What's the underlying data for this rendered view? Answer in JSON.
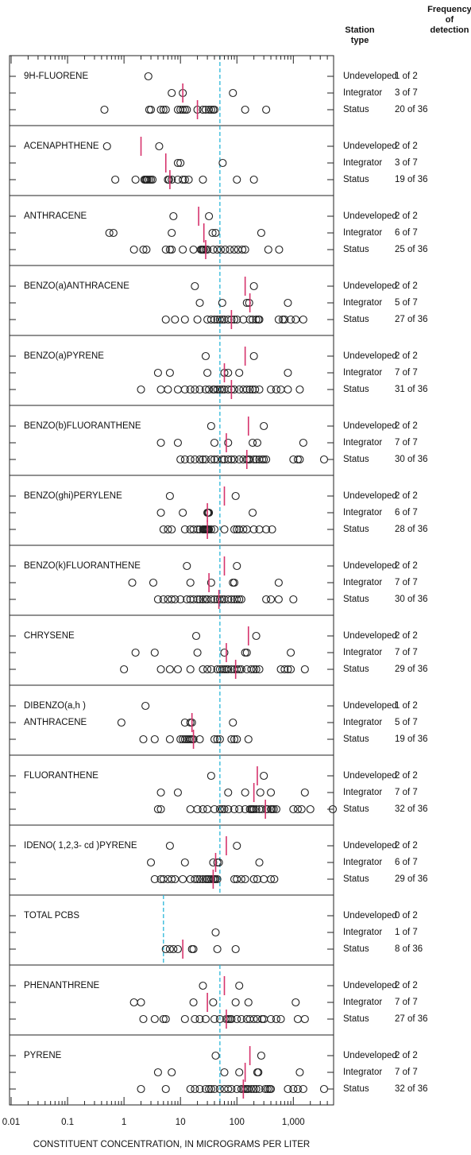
{
  "chart_data": {
    "type": "strip",
    "xlabel": "CONSTITUENT CONCENTRATION, IN MICROGRAMS PER LITER",
    "station_header": [
      "Station",
      "type"
    ],
    "frequency_header": [
      "Frequency",
      "of",
      "detection"
    ],
    "xscale": "log",
    "xlim": [
      0.01,
      5000
    ],
    "xticks": [
      0.01,
      0.1,
      1,
      10,
      100,
      {
        "value": 1000,
        "label": "1,000"
      }
    ],
    "xminorticks": [
      0.02,
      0.03,
      0.04,
      0.05,
      0.06,
      0.07,
      0.08,
      0.09,
      0.2,
      0.3,
      0.4,
      0.5,
      0.6,
      0.7,
      0.8,
      0.9,
      2,
      3,
      4,
      5,
      6,
      7,
      8,
      9,
      20,
      30,
      40,
      50,
      60,
      70,
      80,
      90,
      200,
      300,
      400,
      500,
      600,
      700,
      800,
      900,
      2000,
      3000,
      4000
    ],
    "circle_color": "#222222",
    "median_color": "#d6336c",
    "reference_color": "#29b6d9",
    "panels": [
      {
        "label": [
          "9H-FLUORENE"
        ],
        "reference": 50,
        "rows": [
          {
            "station": "Undeveloped",
            "frequency": "1 of 2",
            "values": [
              2.7
            ],
            "median": null
          },
          {
            "station": "Integrator",
            "frequency": "3 of 7",
            "values": [
              7,
              11,
              85
            ],
            "median": 11
          },
          {
            "station": "Status",
            "frequency": "20 of 36",
            "values": [
              0.45,
              2.8,
              3,
              4.5,
              5,
              5.5,
              9,
              10,
              11,
              12,
              13,
              20,
              25,
              28,
              32,
              35,
              38,
              40,
              140,
              330
            ],
            "median": 20
          }
        ]
      },
      {
        "label": [
          "ACENAPHTHENE"
        ],
        "reference": 50,
        "rows": [
          {
            "station": "Undeveloped",
            "frequency": "2 of 2",
            "values": [
              0.5,
              4.2
            ],
            "median": 2
          },
          {
            "station": "Integrator",
            "frequency": "3 of 7",
            "values": [
              9,
              10,
              56
            ],
            "median": 5.5
          },
          {
            "station": "Status",
            "frequency": "19 of 36",
            "values": [
              0.7,
              1.6,
              2.3,
              2.4,
              2.5,
              2.6,
              2.8,
              6,
              6.3,
              7,
              9,
              11,
              12,
              14,
              25,
              100,
              200,
              3,
              3.2
            ],
            "median": 6.5
          }
        ]
      },
      {
        "label": [
          "ANTHRACENE"
        ],
        "reference": 50,
        "rows": [
          {
            "station": "Undeveloped",
            "frequency": "2 of 2",
            "values": [
              7.5,
              32
            ],
            "median": 21
          },
          {
            "station": "Integrator",
            "frequency": "6 of 7",
            "values": [
              0.55,
              0.65,
              7,
              37,
              42,
              270
            ],
            "median": 26
          },
          {
            "station": "Status",
            "frequency": "25 of 36",
            "values": [
              1.5,
              2.2,
              2.5,
              5.5,
              6.5,
              7,
              11,
              17,
              23,
              24,
              25,
              26,
              28,
              30,
              38,
              45,
              52,
              62,
              75,
              90,
              105,
              125,
              140,
              360,
              560
            ],
            "median": 28
          }
        ]
      },
      {
        "label": [
          "BENZO(a)ANTHRACENE"
        ],
        "reference": 50,
        "rows": [
          {
            "station": "Undeveloped",
            "frequency": "2 of 2",
            "values": [
              18,
              200
            ],
            "median": 140
          },
          {
            "station": "Integrator",
            "frequency": "5 of 7",
            "values": [
              22,
              55,
              150,
              165,
              800
            ],
            "median": 170
          },
          {
            "station": "Status",
            "frequency": "27 of 36",
            "values": [
              5.5,
              8,
              12,
              20,
              30,
              35,
              40,
              45,
              50,
              55,
              60,
              70,
              80,
              90,
              100,
              130,
              170,
              190,
              220,
              240,
              550,
              650,
              700,
              900,
              1100,
              1500,
              250
            ],
            "median": 80
          }
        ]
      },
      {
        "label": [
          "BENZO(a)PYRENE"
        ],
        "reference": 50,
        "rows": [
          {
            "station": "Undeveloped",
            "frequency": "2 of 2",
            "values": [
              28,
              200
            ],
            "median": 140
          },
          {
            "station": "Integrator",
            "frequency": "7 of 7",
            "values": [
              4,
              6.5,
              30,
              60,
              70,
              110,
              800
            ],
            "median": 60
          },
          {
            "station": "Status",
            "frequency": "31 of 36",
            "values": [
              2,
              4.5,
              6,
              9,
              12,
              15,
              18,
              22,
              28,
              32,
              38,
              45,
              50,
              55,
              60,
              70,
              80,
              90,
              110,
              130,
              150,
              170,
              190,
              210,
              250,
              400,
              500,
              600,
              800,
              1300,
              40
            ],
            "median": 80
          }
        ]
      },
      {
        "label": [
          "BENZO(b)FLUORANTHENE"
        ],
        "reference": 50,
        "rows": [
          {
            "station": "Undeveloped",
            "frequency": "2 of 2",
            "values": [
              35,
              300
            ],
            "median": 160
          },
          {
            "station": "Integrator",
            "frequency": "7 of 7",
            "values": [
              4.5,
              9,
              40,
              70,
              190,
              230,
              1500
            ],
            "median": 65
          },
          {
            "station": "Status",
            "frequency": "30 of 36",
            "values": [
              10,
              12,
              15,
              18,
              22,
              28,
              35,
              45,
              55,
              60,
              70,
              90,
              110,
              130,
              150,
              170,
              200,
              220,
              250,
              280,
              300,
              330,
              1000,
              1200,
              1300,
              3500,
              160,
              80,
              40,
              25
            ],
            "median": 150
          }
        ]
      },
      {
        "label": [
          "BENZO(ghi)PERYLENE"
        ],
        "reference": 50,
        "rows": [
          {
            "station": "Undeveloped",
            "frequency": "2 of 2",
            "values": [
              6.5,
              95
            ],
            "median": 60
          },
          {
            "station": "Integrator",
            "frequency": "6 of 7",
            "values": [
              4.5,
              11,
              30,
              31,
              32,
              190
            ],
            "median": 30
          },
          {
            "station": "Status",
            "frequency": "28 of 36",
            "values": [
              5,
              6,
              7,
              12,
              15,
              17,
              20,
              22,
              25,
              28,
              30,
              32,
              35,
              40,
              60,
              90,
              100,
              110,
              130,
              150,
              200,
              250,
              330,
              420,
              26,
              27,
              29,
              31
            ],
            "median": 30
          }
        ]
      },
      {
        "label": [
          "BENZO(k)FLUORANTHENE"
        ],
        "reference": 50,
        "rows": [
          {
            "station": "Undeveloped",
            "frequency": "2 of 2",
            "values": [
              13,
              100
            ],
            "median": 60
          },
          {
            "station": "Integrator",
            "frequency": "7 of 7",
            "values": [
              1.4,
              3.3,
              15,
              35,
              85,
              90,
              550
            ],
            "median": 32
          },
          {
            "station": "Status",
            "frequency": "30 of 36",
            "values": [
              4,
              5,
              6,
              7,
              8,
              10,
              13,
              15,
              17,
              20,
              22,
              25,
              28,
              30,
              35,
              40,
              45,
              55,
              60,
              70,
              80,
              90,
              100,
              110,
              120,
              330,
              400,
              550,
              1000,
              50
            ],
            "median": 48
          }
        ]
      },
      {
        "label": [
          "CHRYSENE"
        ],
        "reference": 50,
        "rows": [
          {
            "station": "Undeveloped",
            "frequency": "2 of 2",
            "values": [
              19,
              220
            ],
            "median": 160
          },
          {
            "station": "Integrator",
            "frequency": "7 of 7",
            "values": [
              1.6,
              3.5,
              20,
              60,
              140,
              150,
              900
            ],
            "median": 65
          },
          {
            "station": "Status",
            "frequency": "29 of 36",
            "values": [
              1,
              4.5,
              6.5,
              9,
              15,
              25,
              35,
              45,
              50,
              55,
              60,
              70,
              80,
              90,
              100,
              120,
              150,
              180,
              200,
              220,
              250,
              600,
              700,
              800,
              900,
              1600,
              30,
              65,
              110
            ],
            "median": 95
          }
        ]
      },
      {
        "label": [
          "DIBENZO(a,h )",
          "ANTHRACENE"
        ],
        "reference": 50,
        "rows": [
          {
            "station": "Undeveloped",
            "frequency": "1 of 2",
            "values": [
              2.4
            ],
            "median": null
          },
          {
            "station": "Integrator",
            "frequency": "5 of 7",
            "values": [
              0.9,
              12,
              15,
              16,
              85
            ],
            "median": 16
          },
          {
            "station": "Status",
            "frequency": "19 of 36",
            "values": [
              2.2,
              3.5,
              6.5,
              10,
              11,
              12,
              13,
              14,
              15,
              16,
              17,
              22,
              40,
              45,
              50,
              80,
              90,
              100,
              160
            ],
            "median": 17
          }
        ]
      },
      {
        "label": [
          "FLUORANTHENE"
        ],
        "reference": 50,
        "rows": [
          {
            "station": "Undeveloped",
            "frequency": "2 of 2",
            "values": [
              35,
              300
            ],
            "median": 230
          },
          {
            "station": "Integrator",
            "frequency": "7 of 7",
            "values": [
              4.5,
              9,
              70,
              140,
              260,
              400,
              1600
            ],
            "median": 200
          },
          {
            "station": "Status",
            "frequency": "32 of 36",
            "values": [
              4,
              4.5,
              15,
              20,
              25,
              30,
              40,
              50,
              55,
              70,
              90,
              110,
              140,
              170,
              180,
              190,
              200,
              220,
              280,
              330,
              400,
              420,
              450,
              500,
              1000,
              1200,
              1400,
              2000,
              5000,
              60,
              250,
              350
            ],
            "median": 320
          }
        ]
      },
      {
        "label": [
          "IDENO( 1,2,3- cd )PYRENE"
        ],
        "reference": 50,
        "rows": [
          {
            "station": "Undeveloped",
            "frequency": "2 of 2",
            "values": [
              6.5,
              100
            ],
            "median": 65
          },
          {
            "station": "Integrator",
            "frequency": "6 of 7",
            "values": [
              3,
              12,
              38,
              45,
              48,
              250
            ],
            "median": 42
          },
          {
            "station": "Status",
            "frequency": "29 of 36",
            "values": [
              3.5,
              4.5,
              5,
              6,
              7,
              8,
              11,
              15,
              18,
              20,
              22,
              25,
              28,
              30,
              32,
              35,
              38,
              40,
              42,
              45,
              90,
              100,
              120,
              140,
              200,
              230,
              300,
              400,
              460
            ],
            "median": 38
          }
        ]
      },
      {
        "label": [
          "TOTAL PCBS"
        ],
        "reference": 5,
        "rows": [
          {
            "station": "Undeveloped",
            "frequency": "0 of 2",
            "values": [],
            "median": null
          },
          {
            "station": "Integrator",
            "frequency": "1 of 7",
            "values": [
              42
            ],
            "median": null
          },
          {
            "station": "Status",
            "frequency": "8 of 36",
            "values": [
              5.5,
              6.5,
              7.5,
              9,
              16,
              17,
              45,
              95
            ],
            "median": 11
          }
        ]
      },
      {
        "label": [
          "PHENANTHRENE"
        ],
        "reference": 50,
        "rows": [
          {
            "station": "Undeveloped",
            "frequency": "2 of 2",
            "values": [
              25,
              110
            ],
            "median": 60
          },
          {
            "station": "Integrator",
            "frequency": "7 of 7",
            "values": [
              1.5,
              2,
              17,
              38,
              95,
              160,
              1100
            ],
            "median": 30
          },
          {
            "station": "Status",
            "frequency": "27 of 36",
            "values": [
              2.2,
              3.5,
              5,
              5.5,
              12,
              18,
              22,
              28,
              40,
              50,
              65,
              70,
              75,
              80,
              100,
              120,
              150,
              200,
              230,
              280,
              300,
              400,
              500,
              600,
              1200,
              1600,
              170
            ],
            "median": 65
          }
        ]
      },
      {
        "label": [
          "PYRENE"
        ],
        "reference": 50,
        "rows": [
          {
            "station": "Undeveloped",
            "frequency": "2 of 2",
            "values": [
              42,
              270
            ],
            "median": 170
          },
          {
            "station": "Integrator",
            "frequency": "7 of 7",
            "values": [
              4,
              7,
              60,
              110,
              230,
              240,
              1300
            ],
            "median": 140
          },
          {
            "station": "Status",
            "frequency": "32 of 36",
            "values": [
              2,
              5.5,
              15,
              18,
              22,
              28,
              32,
              40,
              50,
              60,
              80,
              100,
              120,
              130,
              140,
              150,
              160,
              180,
              200,
              250,
              320,
              350,
              380,
              400,
              800,
              1000,
              1200,
              1500,
              3500,
              70,
              220,
              35
            ],
            "median": 130
          }
        ]
      }
    ]
  }
}
